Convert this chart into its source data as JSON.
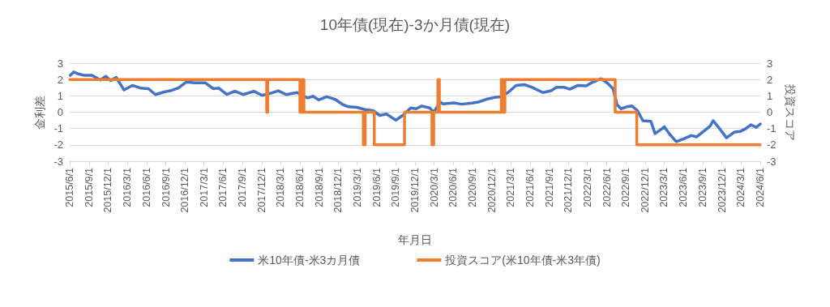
{
  "chart_data": {
    "type": "line",
    "title": "10年債(現在)-3か月債(現在)",
    "xlabel": "年月日",
    "ylabel": "金利差",
    "y2label": "投資スコア",
    "xlim": [
      "2015-06-01",
      "2024-06-01"
    ],
    "xticks": [
      {
        "value": "2015-06-01",
        "label": "2015/6/1"
      },
      {
        "value": "2015-09-01",
        "label": "2015/9/1"
      },
      {
        "value": "2015-12-01",
        "label": "2015/12/1"
      },
      {
        "value": "2016-03-01",
        "label": "2016/3/1"
      },
      {
        "value": "2016-06-01",
        "label": "2016/6/1"
      },
      {
        "value": "2016-09-01",
        "label": "2016/9/1"
      },
      {
        "value": "2016-12-01",
        "label": "2016/12/1"
      },
      {
        "value": "2017-03-01",
        "label": "2017/3/1"
      },
      {
        "value": "2017-06-01",
        "label": "2017/6/1"
      },
      {
        "value": "2017-09-01",
        "label": "2017/9/1"
      },
      {
        "value": "2017-12-01",
        "label": "2017/12/1"
      },
      {
        "value": "2018-03-01",
        "label": "2018/3/1"
      },
      {
        "value": "2018-06-01",
        "label": "2018/6/1"
      },
      {
        "value": "2018-09-01",
        "label": "2018/9/1"
      },
      {
        "value": "2018-12-01",
        "label": "2018/12/1"
      },
      {
        "value": "2019-03-01",
        "label": "2019/3/1"
      },
      {
        "value": "2019-06-01",
        "label": "2019/6/1"
      },
      {
        "value": "2019-09-01",
        "label": "2019/9/1"
      },
      {
        "value": "2019-12-01",
        "label": "2019/12/1"
      },
      {
        "value": "2020-03-01",
        "label": "2020/3/1"
      },
      {
        "value": "2020-06-01",
        "label": "2020/6/1"
      },
      {
        "value": "2020-09-01",
        "label": "2020/9/1"
      },
      {
        "value": "2020-12-01",
        "label": "2020/12/1"
      },
      {
        "value": "2021-03-01",
        "label": "2021/3/1"
      },
      {
        "value": "2021-06-01",
        "label": "2021/6/1"
      },
      {
        "value": "2021-09-01",
        "label": "2021/9/1"
      },
      {
        "value": "2021-12-01",
        "label": "2021/12/1"
      },
      {
        "value": "2022-03-01",
        "label": "2022/3/1"
      },
      {
        "value": "2022-06-01",
        "label": "2022/6/1"
      },
      {
        "value": "2022-09-01",
        "label": "2022/9/1"
      },
      {
        "value": "2022-12-01",
        "label": "2022/12/1"
      },
      {
        "value": "2023-03-01",
        "label": "2023/3/1"
      },
      {
        "value": "2023-06-01",
        "label": "2023/6/1"
      },
      {
        "value": "2023-09-01",
        "label": "2023/9/1"
      },
      {
        "value": "2023-12-01",
        "label": "2023/12/1"
      },
      {
        "value": "2024-03-01",
        "label": "2024/3/1"
      },
      {
        "value": "2024-06-01",
        "label": "2024/6/1"
      }
    ],
    "ylim": [
      -3,
      3
    ],
    "yticks": [
      -3,
      -2,
      -1,
      0,
      1,
      2,
      3
    ],
    "y2lim": [
      -3,
      3
    ],
    "y2ticks": [
      -3,
      -2,
      -1,
      0,
      1,
      2,
      3
    ],
    "grid": "y",
    "legend": "bottom",
    "marker": "none",
    "line_style": "solid",
    "series": [
      {
        "name": "米10年債-米3カ月債",
        "color": "#4472c4",
        "type": "line",
        "x": [
          "2015-06-04",
          "2015-06-20",
          "2015-07-12",
          "2015-08-06",
          "2015-09-15",
          "2015-10-25",
          "2015-11-20",
          "2015-12-13",
          "2016-01-08",
          "2016-02-15",
          "2016-03-25",
          "2016-05-03",
          "2016-06-10",
          "2016-07-13",
          "2016-08-28",
          "2016-09-22",
          "2016-10-30",
          "2016-12-08",
          "2017-01-16",
          "2017-03-07",
          "2017-04-15",
          "2017-05-10",
          "2017-06-18",
          "2017-07-26",
          "2017-09-04",
          "2017-10-25",
          "2017-12-03",
          "2018-01-10",
          "2018-02-18",
          "2018-03-28",
          "2018-05-18",
          "2018-07-08",
          "2018-08-03",
          "2018-08-29",
          "2018-10-07",
          "2018-11-15",
          "2018-12-23",
          "2019-01-18",
          "2019-02-27",
          "2019-04-06",
          "2019-05-15",
          "2019-06-16",
          "2019-07-18",
          "2019-09-01",
          "2019-10-03",
          "2019-11-11",
          "2019-12-06",
          "2020-01-02",
          "2020-02-09",
          "2020-02-28",
          "2020-03-30",
          "2020-04-12",
          "2020-06-03",
          "2020-07-11",
          "2020-08-19",
          "2020-09-27",
          "2020-11-05",
          "2020-12-13",
          "2021-01-15",
          "2021-02-16",
          "2021-03-26",
          "2021-05-04",
          "2021-06-11",
          "2021-08-01",
          "2021-09-09",
          "2021-10-04",
          "2021-11-12",
          "2021-12-07",
          "2022-01-15",
          "2022-02-23",
          "2022-03-20",
          "2022-05-05",
          "2022-06-05",
          "2022-07-01",
          "2022-07-20",
          "2022-08-08",
          "2022-09-04",
          "2022-09-29",
          "2022-10-25",
          "2022-11-20",
          "2022-12-28",
          "2023-01-17",
          "2023-02-18",
          "2023-03-02",
          "2023-03-27",
          "2023-04-28",
          "2023-05-31",
          "2023-07-08",
          "2023-08-03",
          "2023-09-04",
          "2023-10-06",
          "2023-10-21",
          "2023-11-15",
          "2023-12-23",
          "2024-01-31",
          "2024-02-25",
          "2024-03-22",
          "2024-04-17",
          "2024-05-13",
          "2024-06-01"
        ],
        "values": [
          2.26,
          2.46,
          2.34,
          2.26,
          2.26,
          1.97,
          2.2,
          1.93,
          2.13,
          1.36,
          1.64,
          1.48,
          1.44,
          1.08,
          1.25,
          1.31,
          1.48,
          1.85,
          1.8,
          1.8,
          1.44,
          1.48,
          1.08,
          1.28,
          1.08,
          1.28,
          1.03,
          1.15,
          1.31,
          1.08,
          1.2,
          0.87,
          0.98,
          0.75,
          0.95,
          0.79,
          0.46,
          0.33,
          0.3,
          0.16,
          0.1,
          -0.2,
          -0.11,
          -0.49,
          -0.2,
          0.26,
          0.21,
          0.38,
          0.26,
          0,
          0.62,
          0.51,
          0.57,
          0.49,
          0.54,
          0.62,
          0.79,
          0.9,
          0.95,
          1.2,
          1.64,
          1.69,
          1.52,
          1.2,
          1.31,
          1.52,
          1.52,
          1.41,
          1.64,
          1.61,
          1.8,
          2.05,
          1.77,
          1.44,
          0.46,
          0.21,
          0.33,
          0.38,
          0.1,
          -0.52,
          -0.56,
          -1.31,
          -1.02,
          -0.89,
          -1.34,
          -1.8,
          -1.64,
          -1.43,
          -1.51,
          -1.18,
          -0.85,
          -0.52,
          -0.92,
          -1.57,
          -1.21,
          -1.18,
          -1.02,
          -0.77,
          -0.93,
          -0.72
        ]
      },
      {
        "name": "投資スコア(米10年債-米3年債)",
        "color": "#ed7d31",
        "type": "step",
        "axis": "y2",
        "x": [
          "2015-06-01",
          "2017-12-25",
          "2017-12-30",
          "2018-06-01",
          "2018-06-10",
          "2018-06-20",
          "2019-03-30",
          "2019-04-08",
          "2019-05-21",
          "2019-10-12",
          "2020-02-20",
          "2020-02-28",
          "2020-03-19",
          "2020-03-26",
          "2021-01-15",
          "2021-01-25",
          "2021-02-01",
          "2022-07-11",
          "2022-10-22",
          "2024-06-01"
        ],
        "values": [
          2,
          0,
          2,
          0,
          2,
          0,
          -2,
          0,
          -2,
          0,
          -2,
          0,
          2,
          0,
          2,
          0,
          2,
          0,
          -2,
          -2
        ]
      }
    ]
  }
}
